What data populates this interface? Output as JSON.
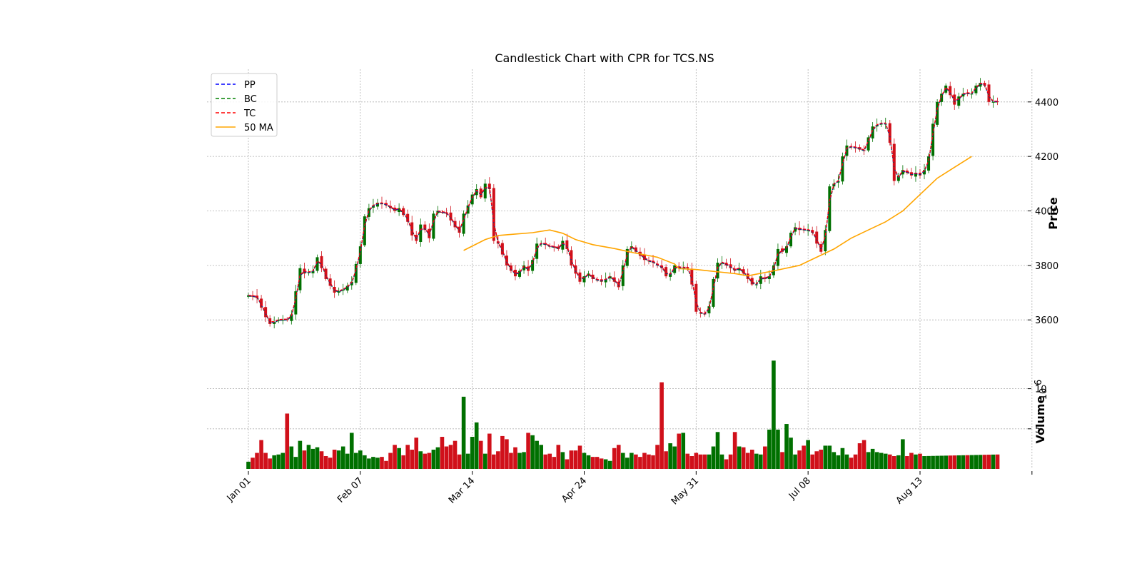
{
  "chart_data": {
    "type": "candlestick",
    "title": "Candlestick Chart with CPR for TCS.NS",
    "ylabel": "Price",
    "volume_label": "Volume",
    "volume_exponent_label": "10",
    "volume_exponent": "6",
    "price_ticks": [
      3600,
      3800,
      4000,
      4200,
      4400
    ],
    "price_ylim": [
      3480,
      4520
    ],
    "volume_ticks": [
      5,
      10
    ],
    "volume_ylim": [
      0,
      14.5
    ],
    "x_tick_labels": [
      "Jan 01",
      "Feb 07",
      "Mar 14",
      "Apr 24",
      "May 31",
      "Jul 08",
      "Aug 13"
    ],
    "x_tick_index": [
      0,
      26,
      52,
      78,
      104,
      130,
      156,
      182
    ],
    "n_days": 175,
    "legend": {
      "position": "upper-left",
      "entries": [
        {
          "key": "pp",
          "label": "PP",
          "color": "#0000ff",
          "style": "dashed"
        },
        {
          "key": "bc",
          "label": "BC",
          "color": "#008000",
          "style": "dashed"
        },
        {
          "key": "tc",
          "label": "TC",
          "color": "#ff0000",
          "style": "dashed"
        },
        {
          "key": "ma",
          "label": "50 MA",
          "color": "#ffa500",
          "style": "solid"
        }
      ]
    },
    "colors": {
      "up": "#007000",
      "down": "#d0101a",
      "ma": "#ffa500"
    },
    "close_anchors": [
      [
        0,
        3690
      ],
      [
        2,
        3680
      ],
      [
        4,
        3610
      ],
      [
        5,
        3585
      ],
      [
        7,
        3600
      ],
      [
        9,
        3600
      ],
      [
        10,
        3620
      ],
      [
        12,
        3790
      ],
      [
        13,
        3770
      ],
      [
        15,
        3780
      ],
      [
        16,
        3830
      ],
      [
        18,
        3750
      ],
      [
        20,
        3700
      ],
      [
        22,
        3710
      ],
      [
        24,
        3740
      ],
      [
        26,
        3870
      ],
      [
        27,
        3980
      ],
      [
        28,
        4010
      ],
      [
        30,
        4030
      ],
      [
        32,
        4020
      ],
      [
        34,
        4000
      ],
      [
        35,
        4010
      ],
      [
        37,
        3960
      ],
      [
        38,
        3910
      ],
      [
        39,
        3890
      ],
      [
        40,
        3950
      ],
      [
        41,
        3930
      ],
      [
        42,
        3900
      ],
      [
        43,
        3990
      ],
      [
        44,
        4000
      ],
      [
        46,
        3990
      ],
      [
        48,
        3940
      ],
      [
        49,
        3920
      ],
      [
        50,
        3990
      ],
      [
        51,
        4020
      ],
      [
        52,
        4060
      ],
      [
        53,
        4080
      ],
      [
        54,
        4050
      ],
      [
        55,
        4100
      ],
      [
        56,
        4080
      ],
      [
        57,
        3890
      ],
      [
        58,
        3880
      ],
      [
        60,
        3800
      ],
      [
        61,
        3780
      ],
      [
        62,
        3760
      ],
      [
        64,
        3800
      ],
      [
        65,
        3780
      ],
      [
        66,
        3820
      ],
      [
        67,
        3880
      ],
      [
        68,
        3880
      ],
      [
        70,
        3870
      ],
      [
        72,
        3860
      ],
      [
        73,
        3890
      ],
      [
        74,
        3860
      ],
      [
        75,
        3800
      ],
      [
        76,
        3770
      ],
      [
        77,
        3740
      ],
      [
        78,
        3760
      ],
      [
        79,
        3770
      ],
      [
        80,
        3750
      ],
      [
        82,
        3740
      ],
      [
        84,
        3760
      ],
      [
        86,
        3720
      ],
      [
        87,
        3800
      ],
      [
        88,
        3860
      ],
      [
        89,
        3870
      ],
      [
        90,
        3850
      ],
      [
        92,
        3820
      ],
      [
        94,
        3810
      ],
      [
        96,
        3790
      ],
      [
        97,
        3760
      ],
      [
        98,
        3770
      ],
      [
        99,
        3800
      ],
      [
        100,
        3790
      ],
      [
        102,
        3790
      ],
      [
        103,
        3730
      ],
      [
        104,
        3630
      ],
      [
        106,
        3620
      ],
      [
        107,
        3650
      ],
      [
        108,
        3750
      ],
      [
        109,
        3810
      ],
      [
        110,
        3810
      ],
      [
        112,
        3790
      ],
      [
        113,
        3780
      ],
      [
        114,
        3790
      ],
      [
        115,
        3770
      ],
      [
        116,
        3750
      ],
      [
        117,
        3730
      ],
      [
        118,
        3730
      ],
      [
        119,
        3760
      ],
      [
        120,
        3750
      ],
      [
        121,
        3760
      ],
      [
        122,
        3800
      ],
      [
        123,
        3860
      ],
      [
        124,
        3850
      ],
      [
        125,
        3870
      ],
      [
        126,
        3920
      ],
      [
        127,
        3940
      ],
      [
        128,
        3930
      ],
      [
        130,
        3930
      ],
      [
        131,
        3920
      ],
      [
        132,
        3880
      ],
      [
        133,
        3850
      ],
      [
        134,
        3930
      ],
      [
        135,
        4090
      ],
      [
        136,
        4100
      ],
      [
        137,
        4110
      ],
      [
        138,
        4200
      ],
      [
        139,
        4240
      ],
      [
        141,
        4230
      ],
      [
        143,
        4220
      ],
      [
        144,
        4270
      ],
      [
        145,
        4310
      ],
      [
        147,
        4320
      ],
      [
        148,
        4320
      ],
      [
        149,
        4250
      ],
      [
        150,
        4110
      ],
      [
        151,
        4130
      ],
      [
        152,
        4150
      ],
      [
        154,
        4130
      ],
      [
        155,
        4140
      ],
      [
        156,
        4130
      ],
      [
        157,
        4150
      ],
      [
        158,
        4200
      ],
      [
        159,
        4320
      ],
      [
        160,
        4400
      ],
      [
        161,
        4430
      ],
      [
        162,
        4460
      ],
      [
        164,
        4390
      ],
      [
        165,
        4420
      ],
      [
        166,
        4430
      ],
      [
        168,
        4430
      ],
      [
        169,
        4460
      ],
      [
        170,
        4470
      ],
      [
        171,
        4460
      ],
      [
        172,
        4400
      ],
      [
        173,
        4400
      ],
      [
        174,
        4400
      ]
    ],
    "ma_anchors": [
      [
        50,
        3855
      ],
      [
        55,
        3895
      ],
      [
        58,
        3910
      ],
      [
        62,
        3915
      ],
      [
        66,
        3920
      ],
      [
        70,
        3930
      ],
      [
        73,
        3918
      ],
      [
        76,
        3895
      ],
      [
        80,
        3876
      ],
      [
        85,
        3862
      ],
      [
        90,
        3845
      ],
      [
        95,
        3830
      ],
      [
        99,
        3805
      ],
      [
        100,
        3788
      ],
      [
        104,
        3785
      ],
      [
        108,
        3778
      ],
      [
        113,
        3770
      ],
      [
        116,
        3762
      ],
      [
        122,
        3780
      ],
      [
        128,
        3800
      ],
      [
        132,
        3830
      ],
      [
        136,
        3860
      ],
      [
        140,
        3900
      ],
      [
        144,
        3930
      ],
      [
        148,
        3960
      ],
      [
        152,
        4000
      ],
      [
        156,
        4060
      ],
      [
        160,
        4120
      ],
      [
        164,
        4160
      ],
      [
        168,
        4200
      ]
    ],
    "volume_anchors": [
      [
        0,
        0.9
      ],
      [
        1,
        1.4
      ],
      [
        2,
        2.0
      ],
      [
        3,
        3.6
      ],
      [
        4,
        2.0
      ],
      [
        5,
        1.3
      ],
      [
        6,
        1.7
      ],
      [
        7,
        1.8
      ],
      [
        8,
        2.0
      ],
      [
        9,
        6.9
      ],
      [
        10,
        2.8
      ],
      [
        11,
        1.5
      ],
      [
        12,
        3.5
      ],
      [
        13,
        2.3
      ],
      [
        14,
        3.0
      ],
      [
        15,
        2.5
      ],
      [
        16,
        2.7
      ],
      [
        17,
        2.2
      ],
      [
        18,
        1.6
      ],
      [
        19,
        1.4
      ],
      [
        20,
        2.4
      ],
      [
        21,
        2.3
      ],
      [
        22,
        2.8
      ],
      [
        23,
        1.9
      ],
      [
        24,
        4.5
      ],
      [
        25,
        2.0
      ],
      [
        26,
        2.3
      ],
      [
        27,
        1.7
      ],
      [
        28,
        1.3
      ],
      [
        29,
        1.5
      ],
      [
        30,
        1.4
      ],
      [
        31,
        1.5
      ],
      [
        32,
        1.0
      ],
      [
        33,
        2.0
      ],
      [
        34,
        3.0
      ],
      [
        35,
        2.6
      ],
      [
        36,
        1.7
      ],
      [
        37,
        3.0
      ],
      [
        38,
        2.4
      ],
      [
        39,
        3.9
      ],
      [
        40,
        2.2
      ],
      [
        41,
        1.9
      ],
      [
        42,
        2.0
      ],
      [
        43,
        2.4
      ],
      [
        44,
        2.7
      ],
      [
        45,
        4.0
      ],
      [
        46,
        2.8
      ],
      [
        47,
        3.0
      ],
      [
        48,
        3.5
      ],
      [
        49,
        1.8
      ],
      [
        50,
        9.0
      ],
      [
        51,
        1.9
      ],
      [
        52,
        4.0
      ],
      [
        53,
        5.8
      ],
      [
        54,
        3.5
      ],
      [
        55,
        1.9
      ],
      [
        56,
        4.4
      ],
      [
        57,
        1.8
      ],
      [
        58,
        2.2
      ],
      [
        59,
        4.1
      ],
      [
        60,
        3.7
      ],
      [
        61,
        2.0
      ],
      [
        62,
        2.7
      ],
      [
        63,
        2.0
      ],
      [
        64,
        2.1
      ],
      [
        65,
        4.5
      ],
      [
        66,
        4.2
      ],
      [
        67,
        3.5
      ],
      [
        68,
        3.0
      ],
      [
        69,
        1.8
      ],
      [
        70,
        1.9
      ],
      [
        71,
        1.5
      ],
      [
        72,
        3.0
      ],
      [
        73,
        2.1
      ],
      [
        74,
        1.2
      ],
      [
        75,
        2.3
      ],
      [
        76,
        2.3
      ],
      [
        77,
        2.9
      ],
      [
        78,
        2.0
      ],
      [
        79,
        1.7
      ],
      [
        80,
        1.5
      ],
      [
        81,
        1.5
      ],
      [
        82,
        1.3
      ],
      [
        83,
        1.2
      ],
      [
        84,
        1.0
      ],
      [
        85,
        2.6
      ],
      [
        86,
        3.0
      ],
      [
        87,
        2.0
      ],
      [
        88,
        1.4
      ],
      [
        89,
        2.0
      ],
      [
        90,
        1.8
      ],
      [
        91,
        1.5
      ],
      [
        92,
        2.0
      ],
      [
        93,
        1.8
      ],
      [
        94,
        1.7
      ],
      [
        95,
        3.0
      ],
      [
        96,
        10.8
      ],
      [
        97,
        2.2
      ],
      [
        98,
        3.2
      ],
      [
        99,
        2.8
      ],
      [
        100,
        4.4
      ],
      [
        101,
        4.5
      ],
      [
        102,
        1.9
      ],
      [
        103,
        1.6
      ],
      [
        104,
        2.0
      ],
      [
        105,
        1.8
      ],
      [
        106,
        1.8
      ],
      [
        107,
        1.8
      ],
      [
        108,
        2.8
      ],
      [
        109,
        4.6
      ],
      [
        110,
        1.8
      ],
      [
        111,
        1.2
      ],
      [
        112,
        1.8
      ],
      [
        113,
        4.6
      ],
      [
        114,
        2.8
      ],
      [
        115,
        2.7
      ],
      [
        116,
        2.0
      ],
      [
        117,
        2.4
      ],
      [
        118,
        1.9
      ],
      [
        119,
        1.8
      ],
      [
        120,
        2.8
      ],
      [
        121,
        4.9
      ],
      [
        122,
        13.5
      ],
      [
        123,
        4.9
      ],
      [
        124,
        2.1
      ],
      [
        125,
        5.6
      ],
      [
        126,
        3.9
      ],
      [
        127,
        1.8
      ],
      [
        128,
        2.3
      ],
      [
        129,
        2.9
      ],
      [
        130,
        3.6
      ],
      [
        131,
        1.8
      ],
      [
        132,
        2.2
      ],
      [
        133,
        2.4
      ],
      [
        134,
        2.9
      ],
      [
        135,
        2.9
      ],
      [
        136,
        2.1
      ],
      [
        137,
        1.7
      ],
      [
        138,
        2.6
      ],
      [
        139,
        1.8
      ],
      [
        140,
        1.4
      ],
      [
        141,
        1.8
      ],
      [
        142,
        3.2
      ],
      [
        143,
        3.6
      ],
      [
        144,
        2.1
      ],
      [
        145,
        2.5
      ],
      [
        146,
        2.1
      ],
      [
        147,
        2.0
      ],
      [
        148,
        1.9
      ],
      [
        149,
        1.8
      ],
      [
        150,
        1.6
      ],
      [
        151,
        1.7
      ],
      [
        152,
        3.7
      ],
      [
        153,
        1.6
      ],
      [
        154,
        2.0
      ],
      [
        155,
        1.8
      ],
      [
        156,
        1.9
      ],
      [
        157,
        1.6
      ],
      [
        174,
        1.8
      ]
    ]
  }
}
